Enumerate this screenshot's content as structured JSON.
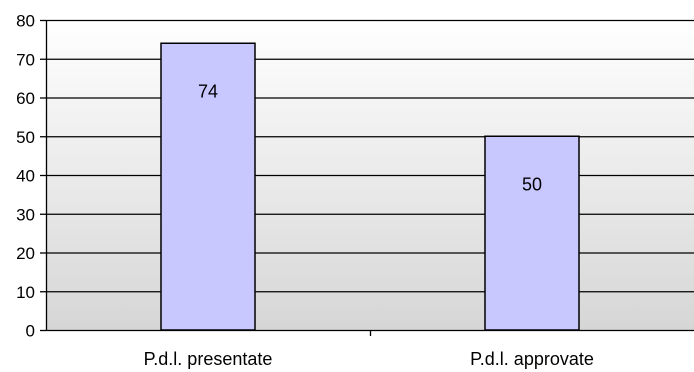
{
  "chart_data": {
    "type": "bar",
    "categories": [
      "P.d.l. presentate",
      "P.d.l. approvate"
    ],
    "values": [
      74,
      50
    ],
    "data_labels": [
      "74",
      "50"
    ],
    "ylim": [
      0,
      80
    ],
    "yticks": [
      0,
      10,
      20,
      30,
      40,
      50,
      60,
      70,
      80
    ],
    "ytick_labels": [
      "0",
      "10",
      "20",
      "30",
      "40",
      "50",
      "60",
      "70",
      "80"
    ],
    "grid": true,
    "legend": "none",
    "colors": {
      "bar_fill": "#c8c8ff",
      "bar_stroke": "#000000",
      "plot_bg_top": "#ffffff",
      "plot_bg_bottom": "#d6d6d6",
      "grid": "#000000"
    }
  }
}
